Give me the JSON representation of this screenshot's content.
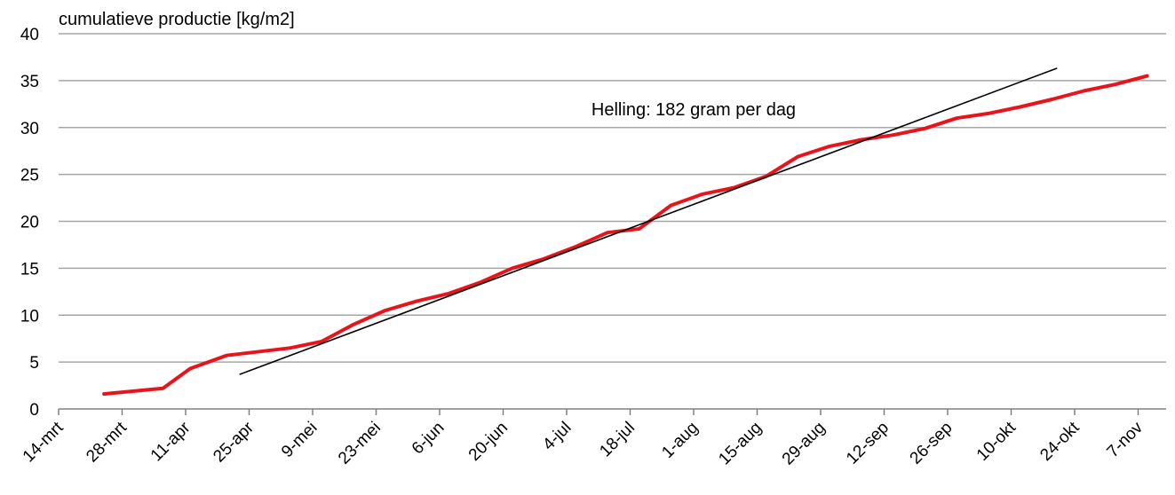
{
  "chart_data": {
    "type": "line",
    "ylabel": "cumulatieve productie [kg/m2]",
    "ylim": [
      0,
      40
    ],
    "yticks": [
      0,
      5,
      10,
      15,
      20,
      25,
      30,
      35,
      40
    ],
    "grid": true,
    "x_categories": [
      "14-mrt",
      "28-mrt",
      "11-apr",
      "25-apr",
      "9-mei",
      "23-mei",
      "6-jun",
      "20-jun",
      "4-jul",
      "18-jul",
      "1-aug",
      "15-aug",
      "29-aug",
      "12-sep",
      "26-sep",
      "10-okt",
      "24-okt",
      "7-nov"
    ],
    "series": [
      {
        "color": "#e8141b",
        "x": [
          "2014-03-24",
          "2014-04-06",
          "2014-04-12",
          "2014-04-20",
          "2014-05-04",
          "2014-05-11",
          "2014-05-18",
          "2014-05-25",
          "2014-06-01",
          "2014-06-08",
          "2014-06-15",
          "2014-06-22",
          "2014-06-29",
          "2014-07-06",
          "2014-07-13",
          "2014-07-20",
          "2014-07-27",
          "2014-08-03",
          "2014-08-10",
          "2014-08-17",
          "2014-08-24",
          "2014-08-31",
          "2014-09-07",
          "2014-09-14",
          "2014-09-21",
          "2014-09-28",
          "2014-10-05",
          "2014-10-12",
          "2014-10-19",
          "2014-10-26",
          "2014-11-02",
          "2014-11-09"
        ],
        "y": [
          1.6,
          2.2,
          4.3,
          5.7,
          6.5,
          7.2,
          9.0,
          10.5,
          11.5,
          12.3,
          13.5,
          15.0,
          16.0,
          17.3,
          18.8,
          19.2,
          21.7,
          22.9,
          23.6,
          24.8,
          26.9,
          28.0,
          28.7,
          29.2,
          29.9,
          31.0,
          31.5,
          32.2,
          33.0,
          33.9,
          34.6,
          35.5
        ]
      },
      {
        "color": "#000000",
        "x": [
          "2014-04-23",
          "2014-10-20"
        ],
        "y": [
          3.7,
          36.3
        ]
      }
    ],
    "annotations": [
      {
        "text": "Helling:  182 gram per dag",
        "x": "2014-08-01",
        "y": 31.3
      }
    ]
  }
}
